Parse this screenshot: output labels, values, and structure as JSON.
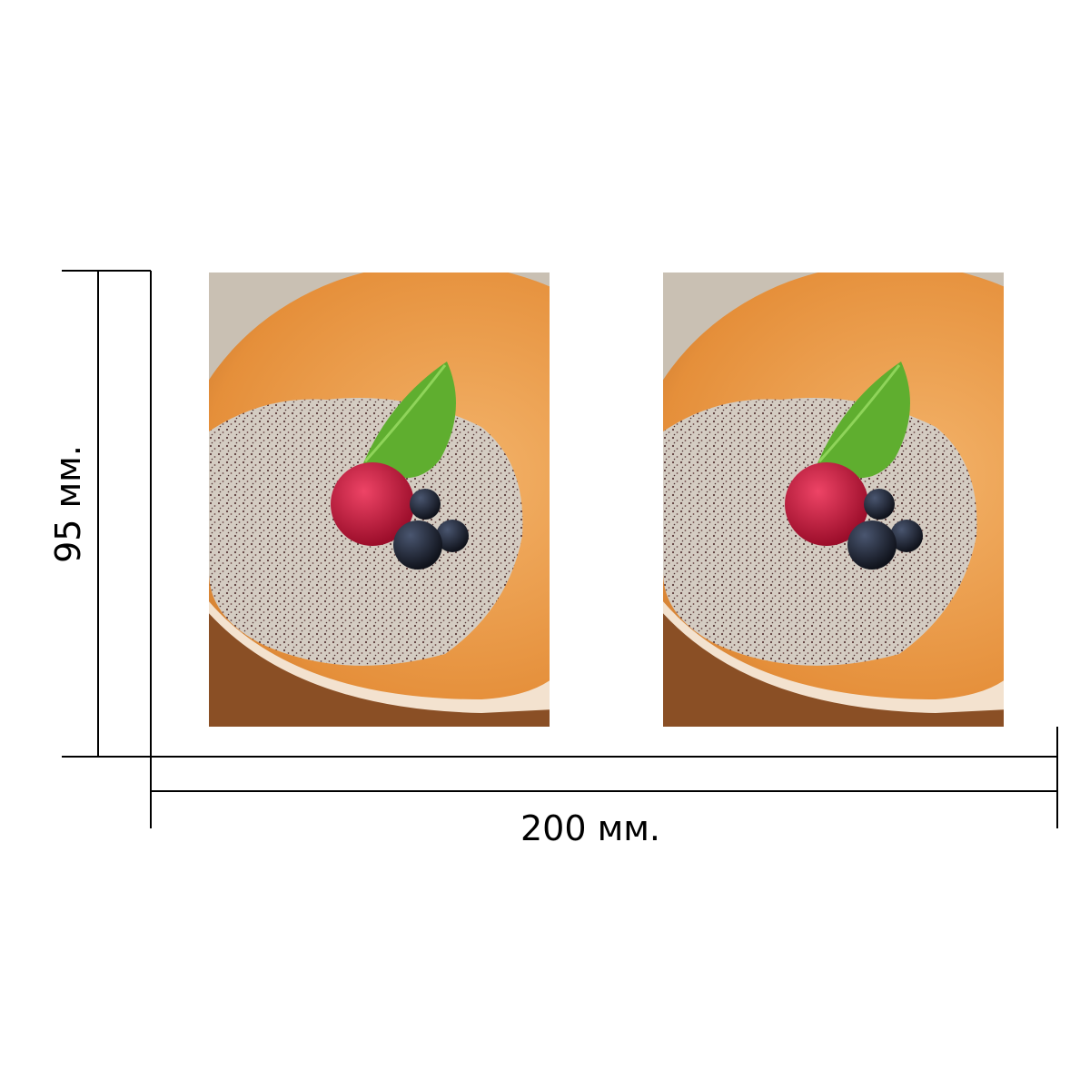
{
  "dimensions": {
    "width_label": "200 мм.",
    "height_label": "95 мм."
  },
  "photos": [
    {
      "name": "left-photo",
      "icon": "porridge-bowl-photo"
    },
    {
      "name": "right-photo",
      "icon": "porridge-bowl-photo"
    }
  ],
  "colors": {
    "line": "#000000",
    "bowl_outer": "#e9933f",
    "bowl_inner": "#f2b06a",
    "rim": "#f4e2d0",
    "background_wall": "#c9c0b3",
    "porridge": "#cfc6bb",
    "leaf": "#5fae2f",
    "raspberry": "#c8173a",
    "blueberry": "#1b2030"
  }
}
